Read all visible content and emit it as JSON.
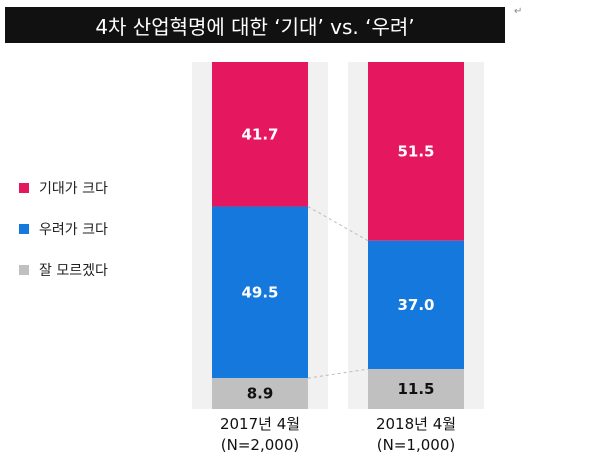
{
  "chart_data": {
    "type": "bar",
    "stacked": true,
    "title": "4차 산업혁명에 대한 ‘기대’ vs. ‘우려’",
    "categories": [
      {
        "line1": "2017년 4월",
        "line2": "(N=2,000)"
      },
      {
        "line1": "2018년 4월",
        "line2": "(N=1,000)"
      }
    ],
    "series": [
      {
        "name": "기대가 크다",
        "color": "#e5175f",
        "values": [
          41.7,
          51.5
        ],
        "labels": [
          "41.7",
          "51.5"
        ],
        "label_color": "#ffffff"
      },
      {
        "name": "우려가 크다",
        "color": "#1478dc",
        "values": [
          49.5,
          37.0
        ],
        "labels": [
          "49.5",
          "37.0"
        ],
        "label_color": "#ffffff"
      },
      {
        "name": "잘 모르겠다",
        "color": "#c0c0c0",
        "values": [
          8.9,
          11.5
        ],
        "labels": [
          "8.9",
          "11.5"
        ],
        "label_color": "#111111"
      }
    ],
    "ylim": [
      0,
      100
    ],
    "legend_position": "left",
    "connector_lines": "dashed"
  },
  "return_mark": "↵"
}
